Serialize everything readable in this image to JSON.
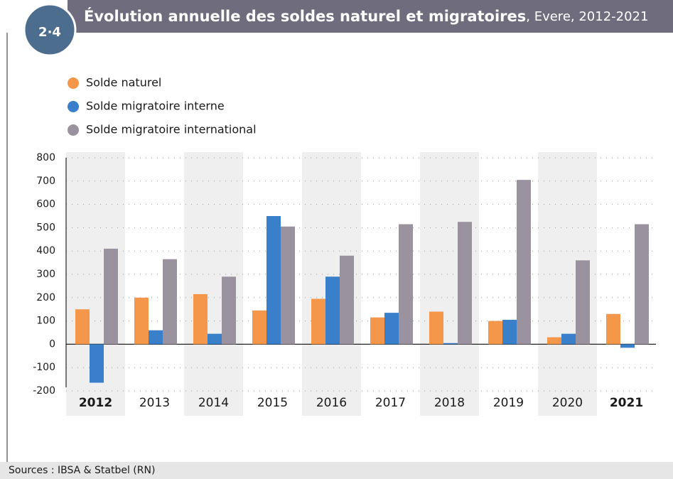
{
  "chart_data": {
    "type": "bar",
    "badge": "2·4",
    "title": "Évolution annuelle des soldes naturel et migratoires",
    "subtitle": ", Evere, 2012-2021",
    "categories": [
      "2012",
      "2013",
      "2014",
      "2015",
      "2016",
      "2017",
      "2018",
      "2019",
      "2020",
      "2021"
    ],
    "bold_categories": [
      "2012",
      "2021"
    ],
    "series": [
      {
        "name": "Solde naturel",
        "color": "#f4974a",
        "values": [
          150,
          200,
          215,
          145,
          195,
          115,
          140,
          100,
          30,
          130
        ]
      },
      {
        "name": "Solde migratoire interne",
        "color": "#3a7fc9",
        "values": [
          -165,
          60,
          45,
          550,
          290,
          135,
          5,
          105,
          45,
          -15
        ]
      },
      {
        "name": "Solde migratoire international",
        "color": "#9a929e",
        "values": [
          410,
          365,
          290,
          505,
          380,
          515,
          525,
          705,
          360,
          515
        ]
      }
    ],
    "ylim": [
      -200,
      800
    ],
    "yticks": [
      -200,
      -100,
      0,
      100,
      200,
      300,
      400,
      500,
      600,
      700,
      800
    ],
    "grid": true,
    "source": "Sources : IBSA & Statbel (RN)"
  }
}
